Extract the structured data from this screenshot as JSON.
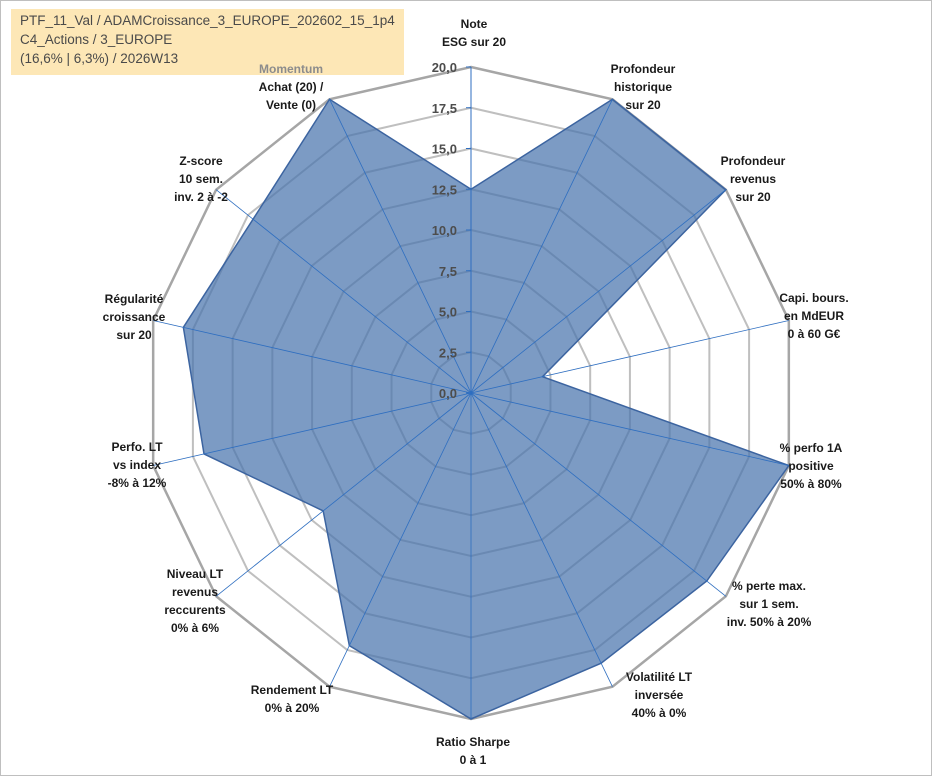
{
  "info_box": {
    "line1": "PTF_11_Val / ADAMCroissance_3_EUROPE_202602_15_1p4",
    "line2": "C4_Actions / 3_EUROPE",
    "line3": "(16,6% | 6,3%) / 2026W13"
  },
  "colors": {
    "fill": "#4a74ad",
    "stroke": "#3c64a0",
    "gridline": "#bfbfbf",
    "outer_ring": "#a6a6a6",
    "spoke": "#2e6ec0",
    "info_box_bg": "#fde7b6"
  },
  "chart_data": {
    "type": "radar",
    "rmin": 0,
    "rmax": 20,
    "tick_step": 2.5,
    "tick_labels": [
      "0,0",
      "2,5",
      "5,0",
      "7,5",
      "10,0",
      "12,5",
      "15,0",
      "17,5",
      "20,0"
    ],
    "axes": [
      {
        "lines": [
          "Note",
          "ESG sur 20"
        ],
        "anchor": "middle"
      },
      {
        "lines": [
          "Profondeur",
          "historique",
          "sur 20"
        ],
        "anchor": "middle"
      },
      {
        "lines": [
          "Profondeur",
          "revenus",
          "sur 20"
        ],
        "anchor": "middle"
      },
      {
        "lines": [
          "Capi. bours.",
          "en MdEUR",
          "0 à 60 G€"
        ],
        "anchor": "middle"
      },
      {
        "lines": [
          "% perfo 1A",
          "positive",
          "50% à 80%"
        ],
        "anchor": "middle"
      },
      {
        "lines": [
          "% perte max.",
          "sur 1 sem.",
          "inv. 50% à 20%"
        ],
        "anchor": "middle"
      },
      {
        "lines": [
          "Volatilité LT",
          "inversée",
          "40% à 0%"
        ],
        "anchor": "middle"
      },
      {
        "lines": [
          "Ratio Sharpe",
          "0 à 1"
        ],
        "anchor": "middle"
      },
      {
        "lines": [
          "Rendement LT",
          "0% à 20%"
        ],
        "anchor": "middle"
      },
      {
        "lines": [
          "Niveau LT",
          "revenus",
          "reccurents",
          "0% à 6%"
        ],
        "anchor": "middle"
      },
      {
        "lines": [
          "Perfo. LT",
          "vs index",
          "-8% à 12%"
        ],
        "anchor": "middle"
      },
      {
        "lines": [
          "Régularité",
          "croissance",
          "sur 20"
        ],
        "anchor": "middle"
      },
      {
        "lines": [
          "Z-score",
          "10 sem.",
          "inv. 2 à -2"
        ],
        "anchor": "middle"
      },
      {
        "lines": [
          "Momentum",
          "Achat (20) /",
          "Vente (0)"
        ],
        "anchor": "middle",
        "muted_first_line": true
      }
    ],
    "series": [
      {
        "values": [
          12.5,
          20,
          20,
          4.5,
          20,
          18.5,
          18.4,
          20,
          17.2,
          11.6,
          16.8,
          18.1,
          17.1,
          20
        ]
      }
    ]
  }
}
